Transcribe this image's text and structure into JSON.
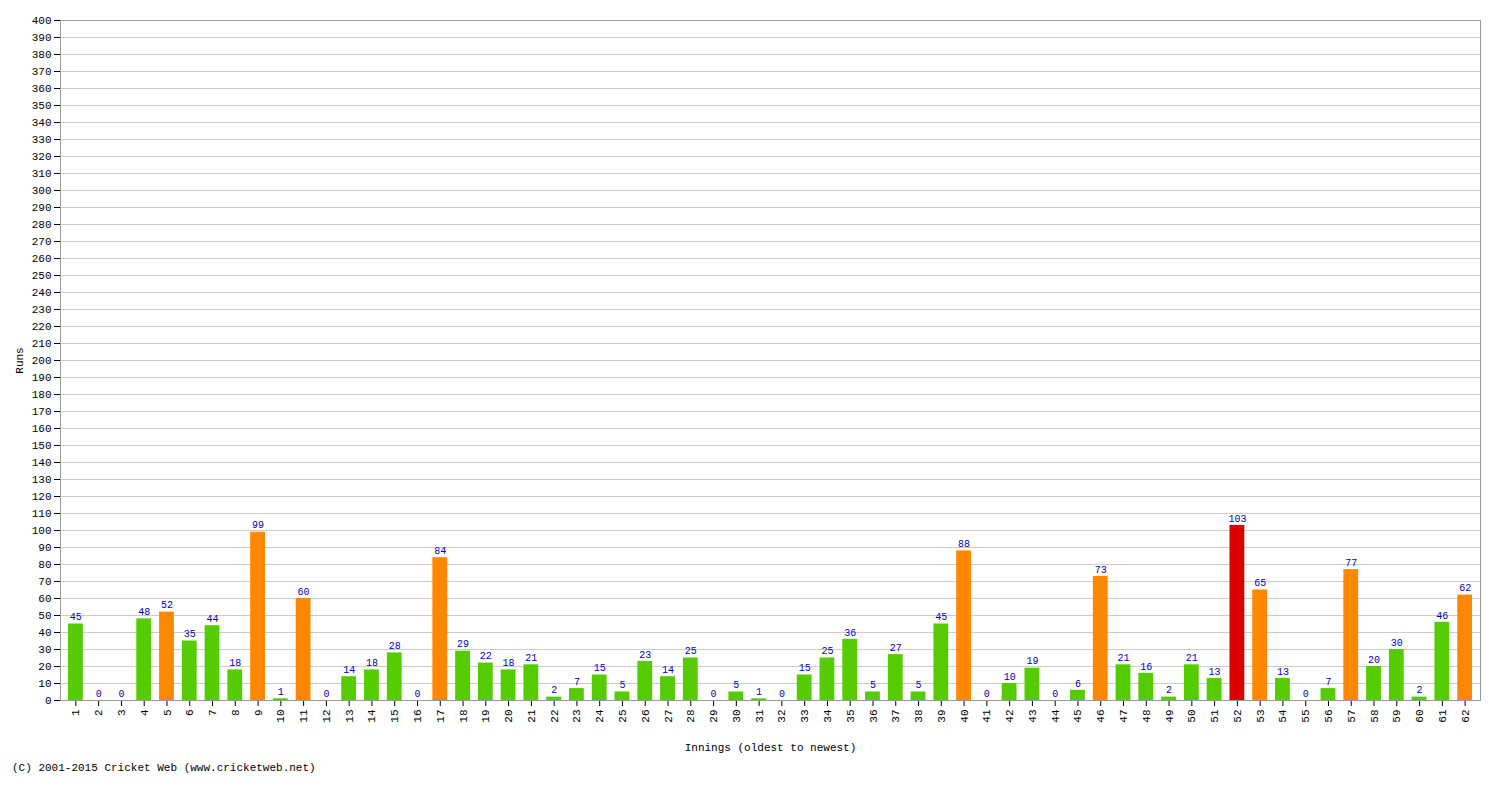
{
  "chart_data": {
    "type": "bar",
    "xlabel": "Innings (oldest to newest)",
    "ylabel": "Runs",
    "categories": [
      "1",
      "2",
      "3",
      "4",
      "5",
      "6",
      "7",
      "8",
      "9",
      "10",
      "11",
      "12",
      "13",
      "14",
      "15",
      "16",
      "17",
      "18",
      "19",
      "20",
      "21",
      "22",
      "23",
      "24",
      "25",
      "26",
      "27",
      "28",
      "29",
      "30",
      "31",
      "32",
      "33",
      "34",
      "35",
      "36",
      "37",
      "38",
      "39",
      "40",
      "41",
      "42",
      "43",
      "44",
      "45",
      "46",
      "47",
      "48",
      "49",
      "50",
      "51",
      "52",
      "53",
      "54",
      "55",
      "56",
      "57",
      "58",
      "59",
      "60",
      "61",
      "62"
    ],
    "values": [
      45,
      0,
      0,
      48,
      52,
      35,
      44,
      18,
      99,
      1,
      60,
      0,
      14,
      18,
      28,
      0,
      84,
      29,
      22,
      18,
      21,
      2,
      7,
      15,
      5,
      23,
      14,
      25,
      0,
      5,
      1,
      0,
      15,
      25,
      36,
      5,
      27,
      5,
      45,
      88,
      0,
      10,
      19,
      0,
      6,
      73,
      21,
      16,
      2,
      21,
      13,
      103,
      65,
      13,
      0,
      7,
      77,
      20,
      30,
      2,
      46,
      62
    ],
    "colors": [
      "#55cc00",
      "#55cc00",
      "#55cc00",
      "#55cc00",
      "#ff8800",
      "#55cc00",
      "#55cc00",
      "#55cc00",
      "#ff8800",
      "#55cc00",
      "#ff8800",
      "#55cc00",
      "#55cc00",
      "#55cc00",
      "#55cc00",
      "#55cc00",
      "#ff8800",
      "#55cc00",
      "#55cc00",
      "#55cc00",
      "#55cc00",
      "#55cc00",
      "#55cc00",
      "#55cc00",
      "#55cc00",
      "#55cc00",
      "#55cc00",
      "#55cc00",
      "#55cc00",
      "#55cc00",
      "#55cc00",
      "#55cc00",
      "#55cc00",
      "#55cc00",
      "#55cc00",
      "#55cc00",
      "#55cc00",
      "#55cc00",
      "#55cc00",
      "#ff8800",
      "#55cc00",
      "#55cc00",
      "#55cc00",
      "#55cc00",
      "#55cc00",
      "#ff8800",
      "#55cc00",
      "#55cc00",
      "#55cc00",
      "#55cc00",
      "#55cc00",
      "#dd0000",
      "#ff8800",
      "#55cc00",
      "#55cc00",
      "#55cc00",
      "#ff8800",
      "#55cc00",
      "#55cc00",
      "#55cc00",
      "#55cc00",
      "#ff8800"
    ],
    "ylim": [
      0,
      400
    ],
    "yticks": [
      0,
      10,
      20,
      30,
      40,
      50,
      60,
      70,
      80,
      90,
      100,
      110,
      120,
      130,
      140,
      150,
      160,
      170,
      180,
      190,
      200,
      210,
      220,
      230,
      240,
      250,
      260,
      270,
      280,
      290,
      300,
      310,
      320,
      330,
      340,
      350,
      360,
      370,
      380,
      390,
      400
    ],
    "grid": true,
    "data_labels": true,
    "annotations": [
      "(C) 2001-2015 Cricket Web (www.cricketweb.net)"
    ]
  }
}
